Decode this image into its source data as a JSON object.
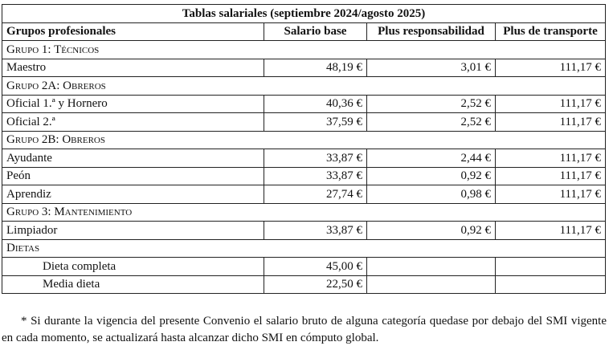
{
  "table": {
    "title": "Tablas salariales (septiembre 2024/agosto 2025)",
    "headers": [
      "Grupos profesionales",
      "Salario base",
      "Plus responsabilidad",
      "Plus de transporte"
    ],
    "sections": [
      {
        "group": "Grupo 1: Técnicos",
        "rows": [
          {
            "name": "Maestro",
            "salario": "48,19 €",
            "responsabilidad": "3,01 €",
            "transporte": "111,17 €"
          }
        ]
      },
      {
        "group": "Grupo 2A: Obreros",
        "rows": [
          {
            "name": "Oficial 1.ª y Hornero",
            "salario": "40,36 €",
            "responsabilidad": "2,52 €",
            "transporte": "111,17 €"
          },
          {
            "name": "Oficial 2.ª",
            "salario": "37,59 €",
            "responsabilidad": "2,52 €",
            "transporte": "111,17 €"
          }
        ]
      },
      {
        "group": "Grupo 2B: Obreros",
        "rows": [
          {
            "name": "Ayudante",
            "salario": "33,87 €",
            "responsabilidad": "2,44 €",
            "transporte": "111,17 €"
          },
          {
            "name": "Peón",
            "salario": "33,87 €",
            "responsabilidad": "0,92 €",
            "transporte": "111,17 €"
          },
          {
            "name": "Aprendiz",
            "salario": "27,74 €",
            "responsabilidad": "0,98 €",
            "transporte": "111,17 €"
          }
        ]
      },
      {
        "group": "Grupo 3: Mantenimiento",
        "rows": [
          {
            "name": "Limpiador",
            "salario": "33,87 €",
            "responsabilidad": "0,92 €",
            "transporte": "111,17 €"
          }
        ]
      },
      {
        "group": "Dietas",
        "rows": [
          {
            "name": "Dieta completa",
            "salario": "45,00 €",
            "responsabilidad": "",
            "transporte": "",
            "indent": true
          },
          {
            "name": "Media dieta",
            "salario": "22,50 €",
            "responsabilidad": "",
            "transporte": "",
            "indent": true
          }
        ]
      }
    ]
  },
  "footnote": "* Si durante la vigencia del presente Convenio el salario bruto de alguna categoría quedase por debajo del SMI vigente en cada momento, se actualizará hasta alcanzar dicho SMI en cómputo global."
}
